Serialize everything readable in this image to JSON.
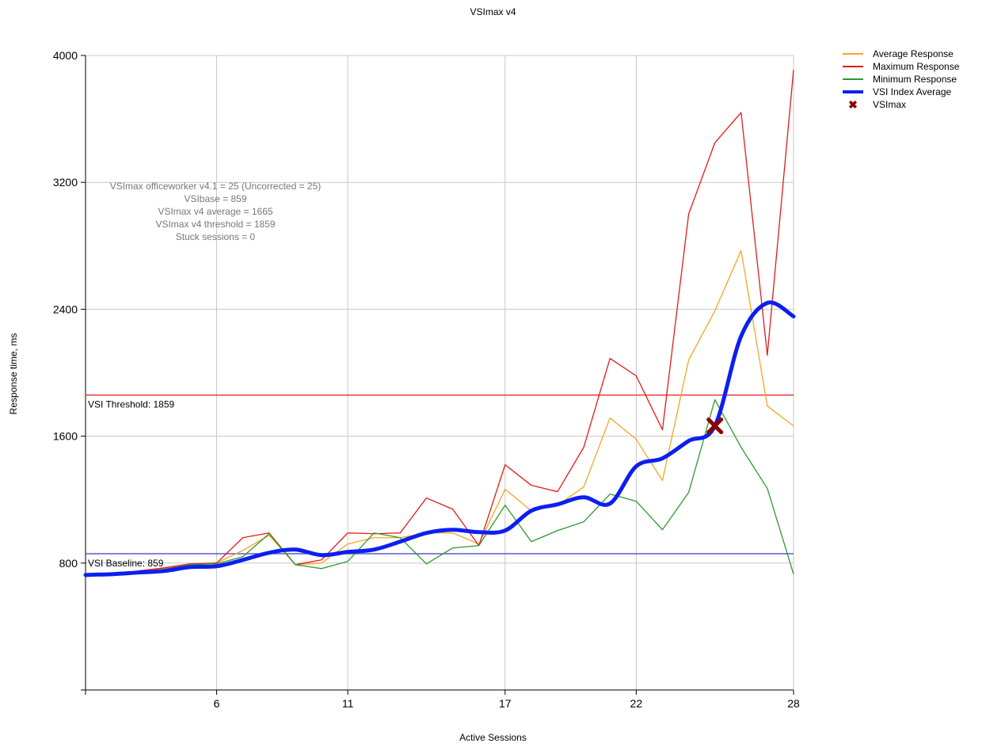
{
  "chart_data": {
    "type": "line",
    "title": "VSImax v4",
    "xlabel": "Active Sessions",
    "ylabel": "Response time, ms",
    "xlim": [
      1,
      28
    ],
    "ylim": [
      0,
      4000
    ],
    "xticks": [
      6,
      11,
      17,
      22,
      28
    ],
    "yticks": [
      800,
      1600,
      2400,
      3200,
      4000
    ],
    "grid": true,
    "legend_position": "top-right",
    "thresholds": [
      {
        "name": "VSI Threshold",
        "label": "VSI Threshold: 1859",
        "value": 1859,
        "color": "#e31a1c"
      },
      {
        "name": "VSI Baseline",
        "label": "VSI Baseline: 859",
        "value": 859,
        "color": "#3b3bbf"
      }
    ],
    "stats": [
      "VSImax officeworker v4.1 = 25 (Uncorrected = 25)",
      "VSIbase = 859",
      "VSImax v4 average = 1665",
      "VSImax v4 threshold = 1859",
      "Stuck sessions = 0"
    ],
    "series": [
      {
        "name": "Average Response",
        "color": "#f6a623",
        "width": 1,
        "x": [
          1,
          2,
          3,
          4,
          5,
          6,
          7,
          8,
          9,
          10,
          11,
          12,
          13,
          14,
          15,
          16,
          17,
          18,
          19,
          20,
          21,
          22,
          23,
          24,
          25,
          26,
          27,
          28
        ],
        "y": [
          720,
          730,
          750,
          765,
          790,
          800,
          880,
          975,
          790,
          800,
          920,
          960,
          960,
          990,
          990,
          920,
          1265,
          1130,
          1165,
          1280,
          1715,
          1580,
          1320,
          2080,
          2390,
          2770,
          1790,
          1665
        ]
      },
      {
        "name": "Maximum Response",
        "color": "#e31a1c",
        "width": 1,
        "x": [
          1,
          2,
          3,
          4,
          5,
          6,
          7,
          8,
          9,
          10,
          11,
          12,
          13,
          14,
          15,
          16,
          17,
          18,
          19,
          20,
          21,
          22,
          23,
          24,
          25,
          26,
          27,
          28
        ],
        "y": [
          720,
          730,
          750,
          770,
          795,
          800,
          960,
          990,
          790,
          820,
          990,
          985,
          990,
          1210,
          1140,
          910,
          1420,
          1290,
          1250,
          1530,
          2090,
          1980,
          1640,
          3000,
          3450,
          3640,
          2110,
          3910
        ]
      },
      {
        "name": "Minimum Response",
        "color": "#2e9a2e",
        "width": 1,
        "x": [
          1,
          2,
          3,
          4,
          5,
          6,
          7,
          8,
          9,
          10,
          11,
          12,
          13,
          14,
          15,
          16,
          17,
          18,
          19,
          20,
          21,
          22,
          23,
          24,
          25,
          26,
          27,
          28
        ],
        "y": [
          715,
          730,
          745,
          760,
          790,
          795,
          840,
          985,
          790,
          765,
          810,
          990,
          960,
          795,
          895,
          910,
          1165,
          935,
          1005,
          1060,
          1235,
          1190,
          1010,
          1245,
          1830,
          1530,
          1270,
          730
        ]
      },
      {
        "name": "VSI Index Average",
        "color": "#0b1ff0",
        "width": 5,
        "x": [
          1,
          2,
          3,
          4,
          5,
          6,
          7,
          8,
          9,
          10,
          11,
          12,
          13,
          14,
          15,
          16,
          17,
          18,
          19,
          20,
          21,
          22,
          23,
          24,
          25,
          26,
          27,
          28
        ],
        "y": [
          725,
          730,
          740,
          750,
          775,
          780,
          820,
          865,
          885,
          850,
          870,
          885,
          935,
          990,
          1010,
          995,
          1005,
          1130,
          1170,
          1215,
          1175,
          1410,
          1460,
          1570,
          1665,
          2230,
          2440,
          2355
        ]
      }
    ],
    "vsimax": {
      "name": "VSImax",
      "x": 25,
      "y": 1665,
      "color": "#8b0000"
    }
  }
}
